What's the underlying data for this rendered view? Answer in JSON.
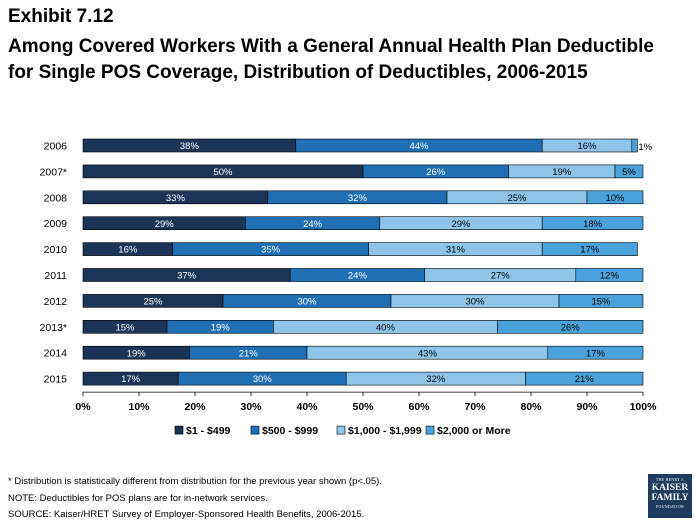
{
  "header": {
    "exhibit": "Exhibit 7.12",
    "title": "Among Covered Workers With a General Annual Health Plan Deductible for Single POS Coverage, Distribution of Deductibles, 2006-2015"
  },
  "chart_data": {
    "type": "bar",
    "orientation": "horizontal",
    "stacked": true,
    "title": "",
    "xlabel": "",
    "ylabel": "",
    "xlim": [
      0,
      100
    ],
    "x_ticks": [
      "0%",
      "10%",
      "20%",
      "30%",
      "40%",
      "50%",
      "60%",
      "70%",
      "80%",
      "90%",
      "100%"
    ],
    "categories": [
      "2006",
      "2007*",
      "2008",
      "2009",
      "2010",
      "2011",
      "2012",
      "2013*",
      "2014",
      "2015"
    ],
    "series": [
      {
        "name": "$1 - $499",
        "color": "#1c3557",
        "values": [
          38,
          50,
          33,
          29,
          16,
          37,
          25,
          15,
          19,
          17
        ]
      },
      {
        "name": "$500 - $999",
        "color": "#1f6fb5",
        "values": [
          44,
          26,
          32,
          24,
          35,
          24,
          30,
          19,
          21,
          30
        ]
      },
      {
        "name": "$1,000 - $1,999",
        "color": "#8ec4e8",
        "values": [
          16,
          19,
          25,
          29,
          31,
          27,
          30,
          40,
          43,
          32
        ]
      },
      {
        "name": "$2,000 or More",
        "color": "#4aa2dc",
        "values": [
          1,
          5,
          10,
          18,
          17,
          12,
          15,
          26,
          17,
          21
        ]
      }
    ],
    "legend_position": "bottom",
    "grid": false
  },
  "footnotes": {
    "note1": "* Distribution is statistically different from distribution for the previous year shown (p<.05).",
    "note2": "NOTE: Deductibles for POS plans are for in-network services.",
    "source": "SOURCE: Kaiser/HRET Survey of Employer-Sponsored Health Benefits, 2006-2015."
  },
  "logo": {
    "line1": "THE HENRY J.",
    "line2": "KAISER",
    "line3": "FAMILY",
    "line4": "FOUNDATION"
  }
}
